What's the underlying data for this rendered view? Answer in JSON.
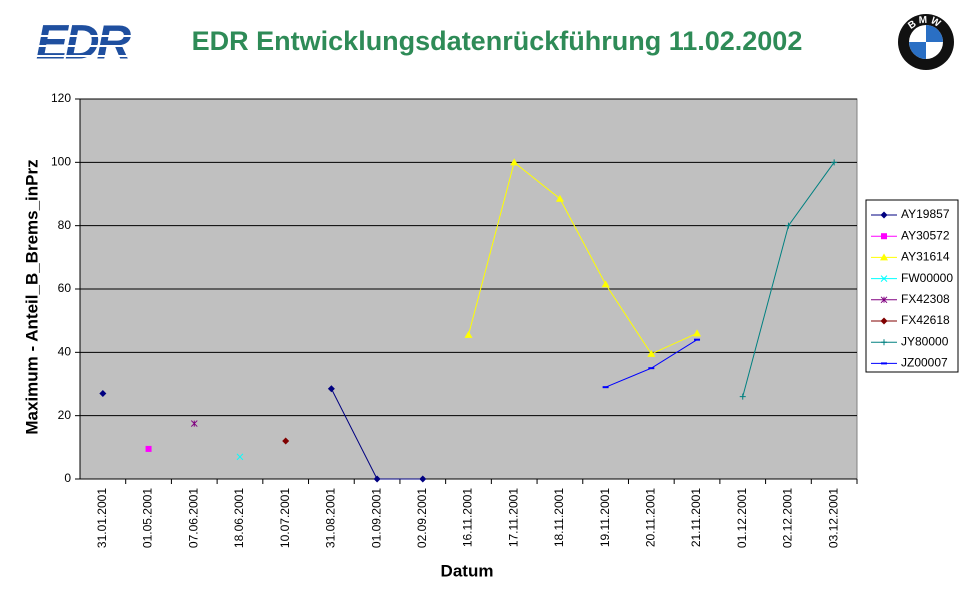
{
  "logos": {
    "left": "EDR",
    "right": "BMW"
  },
  "chart_data": {
    "type": "line",
    "title": "EDR Entwicklungsdatenrückführung 11.02.2002",
    "x_label": "Datum",
    "y_label": "Maximum - Anteil_B_Brems_inPrz",
    "categories": [
      "31.01.2001",
      "01.05.2001",
      "07.06.2001",
      "18.06.2001",
      "10.07.2001",
      "31.08.2001",
      "01.09.2001",
      "02.09.2001",
      "16.11.2001",
      "17.11.2001",
      "18.11.2001",
      "19.11.2001",
      "20.11.2001",
      "21.11.2001",
      "01.12.2001",
      "02.12.2001",
      "03.12.2001"
    ],
    "ylim": [
      0,
      120
    ],
    "yticks": [
      0,
      20,
      40,
      60,
      80,
      100,
      120
    ],
    "grid": true,
    "legend": "right",
    "series": [
      {
        "name": "AY19857",
        "color": "#000080",
        "marker": "diamond",
        "values": [
          27,
          null,
          null,
          null,
          null,
          28.5,
          0,
          0,
          null,
          null,
          null,
          null,
          null,
          null,
          null,
          null,
          null
        ]
      },
      {
        "name": "AY30572",
        "color": "#ff00ff",
        "marker": "square",
        "values": [
          null,
          9.5,
          null,
          null,
          null,
          null,
          null,
          null,
          null,
          null,
          null,
          null,
          null,
          null,
          null,
          null,
          null
        ]
      },
      {
        "name": "AY31614",
        "color": "#ffff00",
        "marker": "triangle",
        "values": [
          null,
          null,
          null,
          null,
          null,
          null,
          null,
          null,
          45.5,
          100,
          88.5,
          61.5,
          39.5,
          46,
          null,
          null,
          null
        ]
      },
      {
        "name": "FW00000",
        "color": "#00ffff",
        "marker": "x",
        "values": [
          null,
          null,
          null,
          7,
          null,
          null,
          null,
          null,
          null,
          null,
          null,
          null,
          null,
          null,
          null,
          null,
          null
        ]
      },
      {
        "name": "FX42308",
        "color": "#800080",
        "marker": "star",
        "values": [
          null,
          null,
          17.5,
          null,
          null,
          null,
          null,
          null,
          null,
          null,
          null,
          null,
          null,
          null,
          null,
          null,
          null
        ]
      },
      {
        "name": "FX42618",
        "color": "#800000",
        "marker": "diamond",
        "values": [
          null,
          null,
          null,
          null,
          12,
          null,
          null,
          null,
          null,
          null,
          null,
          null,
          null,
          null,
          null,
          null,
          null
        ]
      },
      {
        "name": "JY80000",
        "color": "#008080",
        "marker": "plus",
        "values": [
          null,
          null,
          null,
          null,
          null,
          null,
          null,
          null,
          null,
          null,
          null,
          null,
          null,
          null,
          26,
          80,
          100
        ]
      },
      {
        "name": "JZ00007",
        "color": "#0000ff",
        "marker": "dash",
        "values": [
          null,
          null,
          null,
          null,
          null,
          null,
          null,
          null,
          null,
          null,
          null,
          29,
          35,
          44,
          null,
          null,
          null
        ]
      }
    ]
  }
}
